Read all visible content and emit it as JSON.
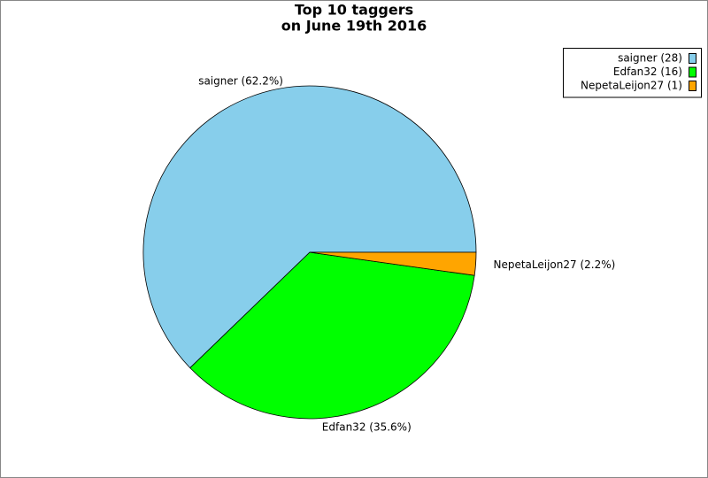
{
  "chart_data": {
    "type": "pie",
    "title": [
      "Top 10 taggers",
      "on June 19th 2016"
    ],
    "categories": [
      "saigner (28)",
      "Edfan32 (16)",
      "NepetaLeijon27 (1)"
    ],
    "values": [
      28,
      16,
      1
    ],
    "value_labels": [
      "saigner (62.2%)",
      "Edfan32 (35.6%)",
      "NepetaLeijon27 (2.2%)"
    ],
    "colors": [
      "#87ceeb",
      "#00ff00",
      "#ffa500"
    ],
    "legend": "upper right"
  }
}
